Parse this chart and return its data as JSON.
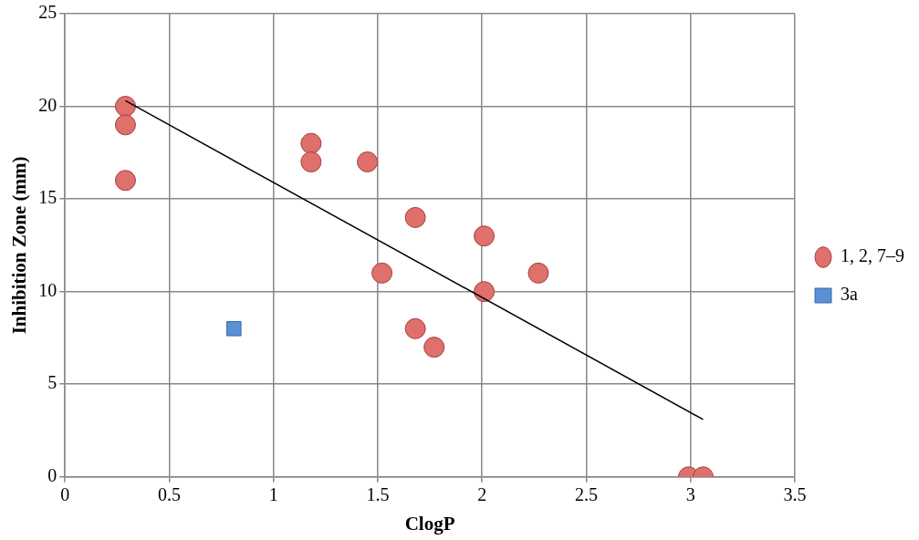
{
  "chart_data": {
    "type": "scatter",
    "xlabel": "ClogP",
    "ylabel": "Inhibition Zone (mm)",
    "xlim": [
      0,
      3.5
    ],
    "xticks": [
      0,
      0.5,
      1,
      1.5,
      2,
      2.5,
      3,
      3.5
    ],
    "ylim": [
      0,
      25
    ],
    "yticks": [
      0,
      5,
      10,
      15,
      20,
      25
    ],
    "grid": true,
    "legend": "right",
    "series": [
      {
        "name": "1, 2, 7–9",
        "color": "#e0706c",
        "marker": "circle",
        "x": [
          0.29,
          0.29,
          0.29,
          1.18,
          1.18,
          1.45,
          1.68,
          1.52,
          1.68,
          1.77,
          2.01,
          2.01,
          2.27,
          2.99,
          3.06
        ],
        "values": [
          20,
          19,
          16,
          18,
          17,
          17,
          14,
          11,
          8,
          7,
          13,
          10,
          11,
          0,
          0
        ]
      },
      {
        "name": "3a",
        "color": "#5b8fd6",
        "marker": "square",
        "x": [
          0.81
        ],
        "values": [
          8
        ]
      },
      {
        "type": "line",
        "color": "#000000",
        "marker": "none",
        "x": [
          0.29,
          3.06
        ],
        "values": [
          20.3,
          3.1
        ]
      }
    ]
  }
}
